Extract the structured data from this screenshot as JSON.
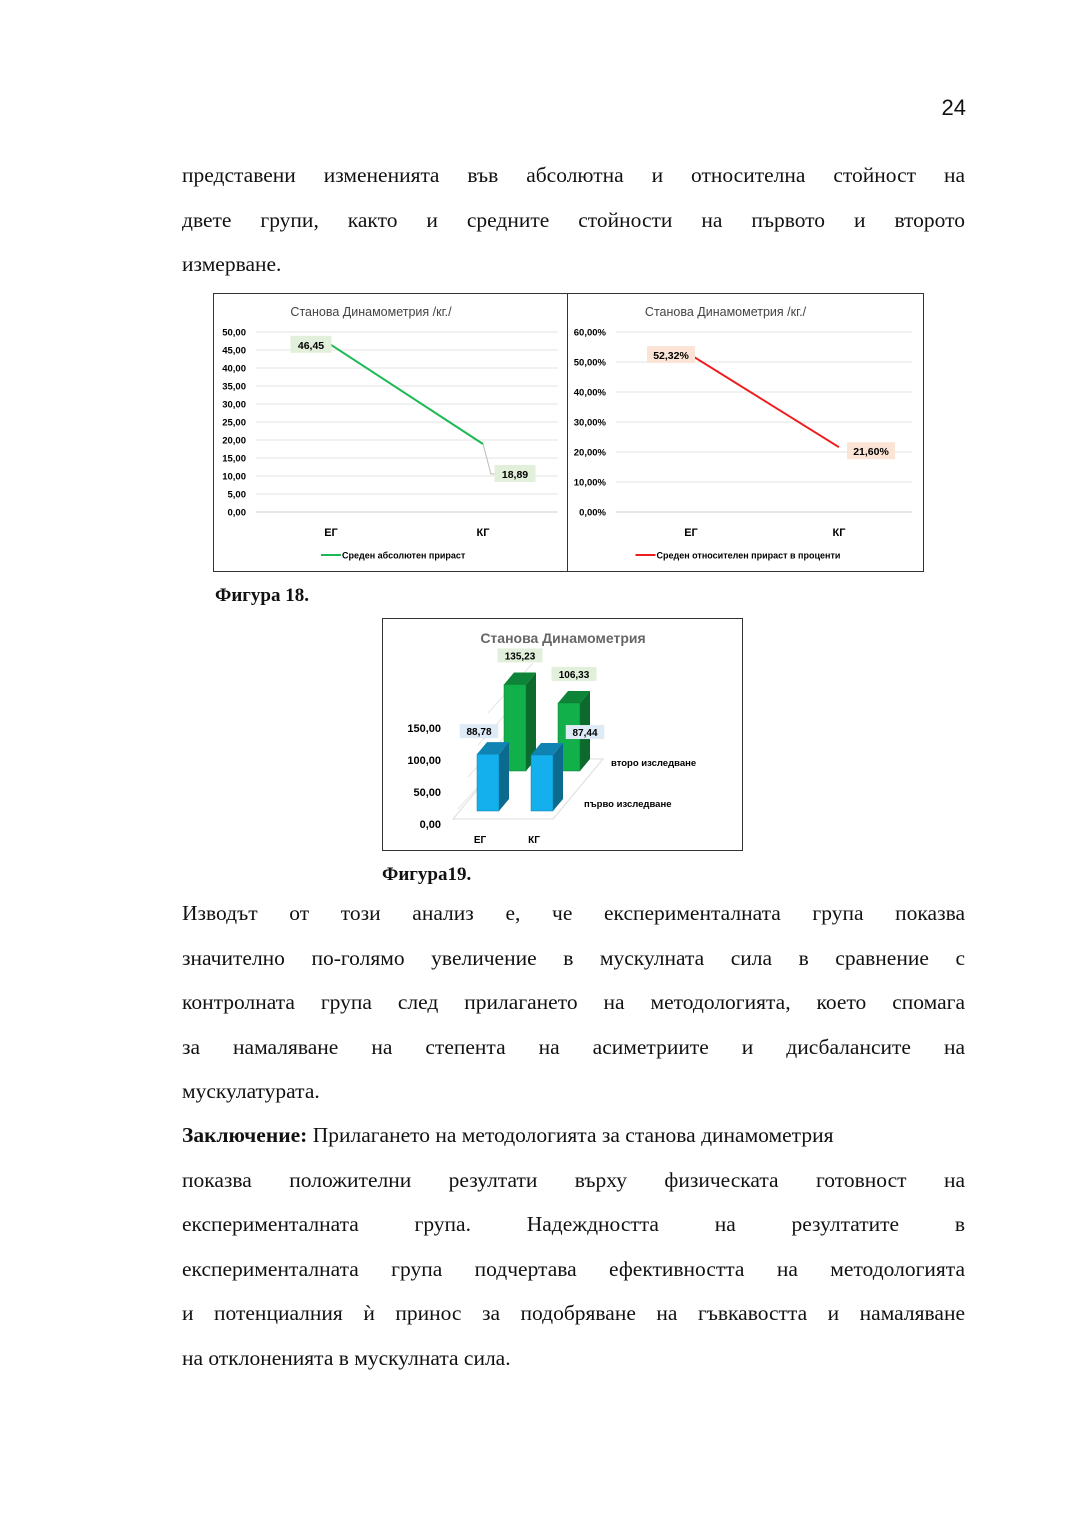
{
  "page_number": "24",
  "paragraph1": [
    "представени изменениятa във абсолютна и относителна стойност на",
    "двете групи, както и средните стойности на първото и второто",
    "измерване."
  ],
  "figure18": {
    "caption": "Фигура 18."
  },
  "figure19": {
    "caption": "Фигура19."
  },
  "paragraph2": [
    "Изводът от този анализ е, че експерименталната група показва",
    "значително по-голямо увеличение в мускулната сила в сравнение с",
    "контролната група след прилагането на методологията, което спомага",
    "за намаляване на степента на асиметриите и дисбалансите на",
    "мускулатурата."
  ],
  "conclusion": {
    "label": "Заключение:",
    "lines": [
      " Прилагането на методологията за станова динамометрия",
      "показва положителни резултати върху физическата готовност на",
      "експерименталната група. Надеждността на резултатите в",
      "експерименталната група подчертава ефективността на методологията",
      "и потенциалния ѝ принос за подобряване на гъвкавостта и намаляване",
      "на отклоненията в мускулната сила."
    ]
  },
  "chart_data": [
    {
      "type": "line",
      "title": "Станова Динамометрия /кг./",
      "categories": [
        "ЕГ",
        "КГ"
      ],
      "series": [
        {
          "name": "Среден абсолютен прираст",
          "values": [
            46.45,
            18.89
          ],
          "labels": [
            "46,45",
            "18,89"
          ],
          "color": "#1db954",
          "label_bg": "#e2efda"
        }
      ],
      "ylim": [
        0,
        50
      ],
      "yticks": [
        "0,00",
        "5,00",
        "10,00",
        "15,00",
        "20,00",
        "25,00",
        "30,00",
        "35,00",
        "40,00",
        "45,00",
        "50,00"
      ],
      "grid": true,
      "legend": "bottom"
    },
    {
      "type": "line",
      "title": "Станова Динамометрия /кг./",
      "categories": [
        "ЕГ",
        "КГ"
      ],
      "series": [
        {
          "name": "Среден относителен прираст в проценти",
          "values": [
            52.32,
            21.6
          ],
          "labels": [
            "52,32%",
            "21,60%"
          ],
          "color": "#ee1c1c",
          "label_bg": "#fbe4d5"
        }
      ],
      "ylim": [
        0,
        60
      ],
      "yticks": [
        "0,00%",
        "10,00%",
        "20,00%",
        "30,00%",
        "40,00%",
        "50,00%",
        "60,00%"
      ],
      "grid": true,
      "legend": "bottom"
    },
    {
      "type": "bar",
      "title": "Станова Динамометрия",
      "categories": [
        "ЕГ",
        "КГ"
      ],
      "series": [
        {
          "name": "първо изследване",
          "values": [
            88.78,
            87.44
          ],
          "labels": [
            "88,78",
            "87,44"
          ],
          "color": "#14b0ee",
          "label_bg": "#deebf7"
        },
        {
          "name": "второ изследване",
          "values": [
            135.23,
            106.33
          ],
          "labels": [
            "135,23",
            "106,33"
          ],
          "color": "#12b04a",
          "label_bg": "#e2efda"
        }
      ],
      "yticks": [
        "0,00",
        "50,00",
        "100,00",
        "150,00"
      ],
      "ylim": [
        0,
        150
      ],
      "projection": "3d"
    }
  ]
}
